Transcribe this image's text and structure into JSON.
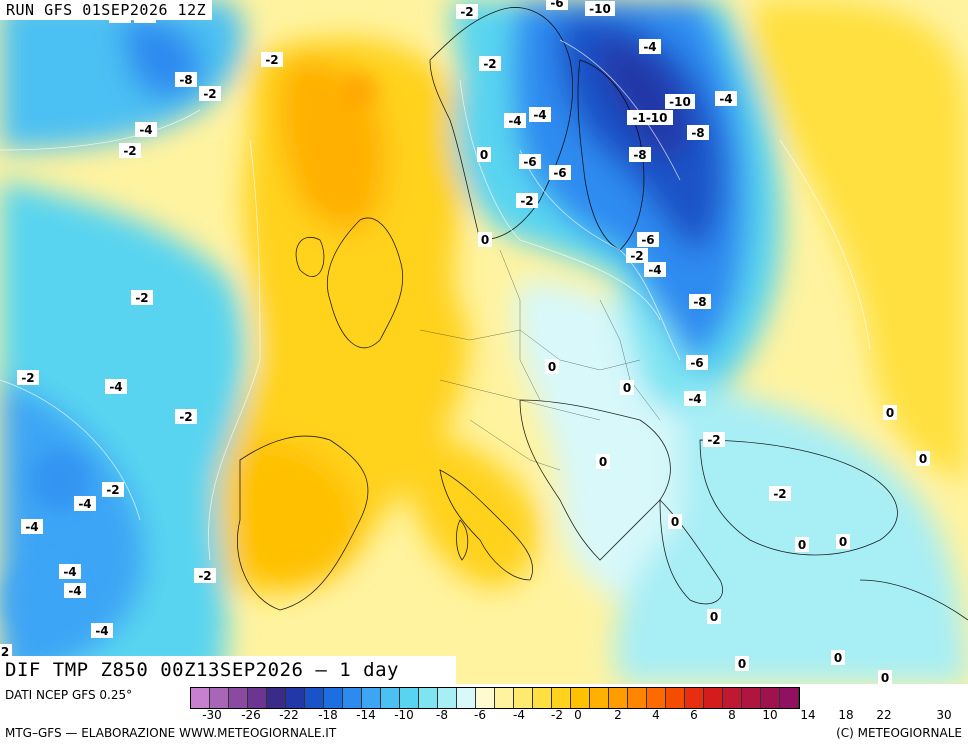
{
  "header": {
    "run": "RUN GFS 01SEP2026 12Z"
  },
  "title": "DIF TMP Z850 00Z13SEP2026 — 1 day",
  "source": "DATI NCEP GFS 0.25°",
  "footer": {
    "left": "MTG–GFS — ELABORAZIONE WWW.METEOGIORNALE.IT",
    "right": "(C) METEOGIORNALE"
  },
  "legend": {
    "colors": [
      "#c77fd0",
      "#a866b8",
      "#8b4aa0",
      "#6b3590",
      "#3a2a8a",
      "#2238a8",
      "#1a52c8",
      "#1b6fe0",
      "#2d8bf0",
      "#3ea5f5",
      "#4cc0f3",
      "#58d4f0",
      "#7ee4f2",
      "#a8eef5",
      "#d8f8fa",
      "#fffad0",
      "#fff3a0",
      "#ffea70",
      "#ffe040",
      "#ffd21e",
      "#ffc000",
      "#ffb000",
      "#ff9c00",
      "#ff8400",
      "#ff6a00",
      "#f44d00",
      "#e82e10",
      "#d41c1c",
      "#c01830",
      "#b01540",
      "#a0124e",
      "#921060"
    ],
    "ticks": [
      "-30",
      "-26",
      "-22",
      "-18",
      "-14",
      "-10",
      "-8",
      "-6",
      "-4",
      "-2",
      "0",
      "2",
      "4",
      "6",
      "8",
      "10",
      "14",
      "18",
      "22",
      "30"
    ]
  },
  "map_labels": [
    {
      "t": "-2"
    },
    {
      "t": "-6"
    },
    {
      "t": "-10"
    },
    {
      "t": "-6"
    },
    {
      "t": "-2"
    },
    {
      "t": "-8"
    },
    {
      "t": "-2"
    },
    {
      "t": "-2"
    },
    {
      "t": "-4"
    },
    {
      "t": "-2"
    },
    {
      "t": "-4"
    },
    {
      "t": "-4"
    },
    {
      "t": "-10"
    },
    {
      "t": "-1-10"
    },
    {
      "t": "-8"
    },
    {
      "t": "-8"
    },
    {
      "t": "0"
    },
    {
      "t": "-6"
    },
    {
      "t": "-6"
    },
    {
      "t": "-2"
    },
    {
      "t": "0"
    },
    {
      "t": "-6"
    },
    {
      "t": "-2"
    },
    {
      "t": "-4"
    },
    {
      "t": "-2"
    },
    {
      "t": "-8"
    },
    {
      "t": "-2"
    },
    {
      "t": "0"
    },
    {
      "t": "-6"
    },
    {
      "t": "-4"
    },
    {
      "t": "0"
    },
    {
      "t": "-4"
    },
    {
      "t": "-2"
    },
    {
      "t": "0"
    },
    {
      "t": "-2"
    },
    {
      "t": "0"
    },
    {
      "t": "0"
    },
    {
      "t": "-2"
    },
    {
      "t": "-4"
    },
    {
      "t": "-4"
    },
    {
      "t": "0"
    },
    {
      "t": "0"
    },
    {
      "t": "0"
    },
    {
      "t": "-2"
    },
    {
      "t": "-4"
    },
    {
      "t": "-4"
    },
    {
      "t": "-4"
    },
    {
      "t": "0"
    },
    {
      "t": "0"
    },
    {
      "t": "0"
    },
    {
      "t": "-2"
    },
    {
      "t": "-4"
    },
    {
      "t": "-4"
    },
    {
      "t": "0"
    },
    {
      "t": "2"
    },
    {
      "t": "-2"
    }
  ]
}
